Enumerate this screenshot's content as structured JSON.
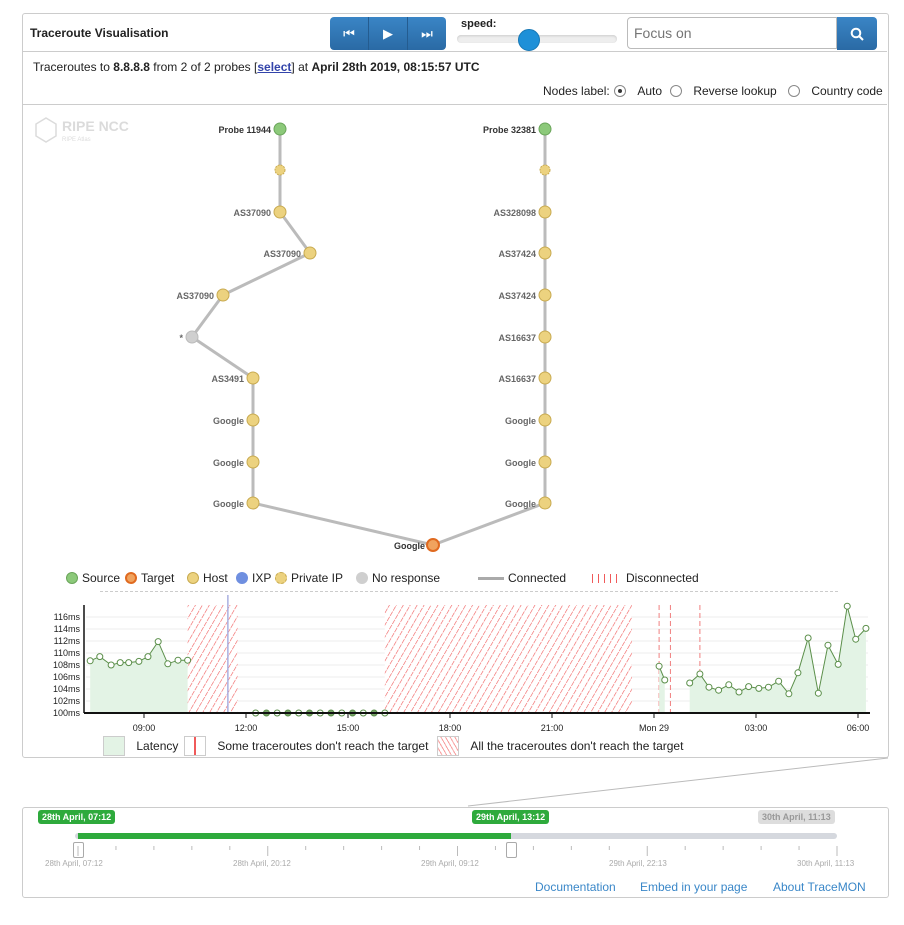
{
  "header": {
    "title": "Traceroute Visualisation",
    "controls": {
      "prev_icon": "skip-back-icon",
      "play_icon": "play-icon",
      "next_icon": "skip-forward-icon"
    },
    "speed_label": "speed:",
    "speed_value": 0.44,
    "search_placeholder": "Focus on",
    "search_icon": "search-icon"
  },
  "info": {
    "prefix": "Traceroutes to ",
    "target": "8.8.8.8",
    "mid": " from 2 of 2 probes ",
    "select": "select",
    "at": " at ",
    "datetime": "April 28th 2019, 08:15:57 UTC"
  },
  "nodes_label": {
    "label": "Nodes label:",
    "options": [
      {
        "label": "Auto",
        "selected": true
      },
      {
        "label": "Reverse lookup",
        "selected": false
      },
      {
        "label": "Country code",
        "selected": false
      }
    ]
  },
  "graph": {
    "colors": {
      "source": "#8cc97a",
      "target": "#f0a35e",
      "host": "#ecd27f",
      "ixp": "#6f8fe0",
      "private": "#ecd27f",
      "no_response": "#cfcfcf"
    },
    "paths": [
      {
        "nodes": [
          {
            "label": "Probe 11944",
            "type": "source"
          },
          {
            "label": "",
            "type": "private"
          },
          {
            "label": "AS37090",
            "type": "host"
          },
          {
            "label": "AS37090",
            "type": "host"
          },
          {
            "label": "AS37090",
            "type": "host"
          },
          {
            "label": "*",
            "type": "no_response"
          },
          {
            "label": "AS3491",
            "type": "host"
          },
          {
            "label": "Google",
            "type": "host"
          },
          {
            "label": "Google",
            "type": "host"
          },
          {
            "label": "Google",
            "type": "host"
          }
        ]
      },
      {
        "nodes": [
          {
            "label": "Probe 32381",
            "type": "source"
          },
          {
            "label": "",
            "type": "private"
          },
          {
            "label": "AS328098",
            "type": "host"
          },
          {
            "label": "AS37424",
            "type": "host"
          },
          {
            "label": "AS37424",
            "type": "host"
          },
          {
            "label": "AS16637",
            "type": "host"
          },
          {
            "label": "AS16637",
            "type": "host"
          },
          {
            "label": "Google",
            "type": "host"
          },
          {
            "label": "Google",
            "type": "host"
          },
          {
            "label": "Google",
            "type": "host"
          }
        ]
      }
    ],
    "target": {
      "label": "Google",
      "type": "target"
    },
    "watermark": {
      "name": "RIPE NCC",
      "sub": "RIPE Atlas"
    }
  },
  "legend": {
    "items": [
      {
        "label": "Source",
        "type": "source"
      },
      {
        "label": "Target",
        "type": "target"
      },
      {
        "label": "Host",
        "type": "host"
      },
      {
        "label": "IXP",
        "type": "ixp"
      },
      {
        "label": "Private IP",
        "type": "private"
      },
      {
        "label": "No response",
        "type": "no_response"
      },
      {
        "label": "Connected",
        "type": "line"
      },
      {
        "label": "Disconnected",
        "type": "dashed"
      }
    ]
  },
  "chart_data": {
    "type": "area",
    "y_ticks": [
      "100ms",
      "102ms",
      "104ms",
      "106ms",
      "108ms",
      "110ms",
      "112ms",
      "114ms",
      "116ms"
    ],
    "ylim": [
      100,
      118
    ],
    "x_ticks": [
      "09:00",
      "12:00",
      "15:00",
      "18:00",
      "21:00",
      "Mon 29",
      "03:00",
      "06:00"
    ],
    "segments": [
      [
        [
          "04-28 07:25",
          108.7
        ],
        [
          "04-28 07:42",
          109.4
        ],
        [
          "04-28 08:02",
          108
        ],
        [
          "04-28 08:18",
          108.4
        ],
        [
          "04-28 08:33",
          108.4
        ],
        [
          "04-28 08:51",
          108.6
        ],
        [
          "04-28 09:07",
          109.4
        ],
        [
          "04-28 09:25",
          111.9
        ],
        [
          "04-28 09:42",
          108.2
        ],
        [
          "04-28 10:00",
          108.8
        ],
        [
          "04-28 10:17",
          108.8
        ]
      ],
      [
        [
          "04-28 12:17",
          100
        ],
        [
          "04-28 12:36",
          100
        ],
        [
          "04-28 12:55",
          100
        ],
        [
          "04-28 13:14",
          100
        ],
        [
          "04-28 13:33",
          100
        ],
        [
          "04-28 13:52",
          100
        ],
        [
          "04-28 14:11",
          100
        ],
        [
          "04-28 14:30",
          100
        ],
        [
          "04-28 14:49",
          100
        ],
        [
          "04-28 15:08",
          100
        ],
        [
          "04-28 15:27",
          100
        ],
        [
          "04-28 15:46",
          100
        ],
        [
          "04-28 16:05",
          100
        ]
      ],
      [
        [
          "04-29 00:09",
          107.8
        ],
        [
          "04-29 00:19",
          105.5
        ]
      ],
      [
        [
          "04-29 01:03",
          105
        ],
        [
          "04-29 01:21",
          106.5
        ],
        [
          "04-29 01:37",
          104.3
        ],
        [
          "04-29 01:54",
          103.8
        ],
        [
          "04-29 02:12",
          104.7
        ],
        [
          "04-29 02:30",
          103.5
        ],
        [
          "04-29 02:47",
          104.4
        ],
        [
          "04-29 03:05",
          104.1
        ],
        [
          "04-29 03:22",
          104.3
        ],
        [
          "04-29 03:40",
          105.3
        ],
        [
          "04-29 03:58",
          103.2
        ],
        [
          "04-29 04:14",
          106.7
        ],
        [
          "04-29 04:32",
          112.5
        ],
        [
          "04-29 04:50",
          103.3
        ],
        [
          "04-29 05:07",
          111.3
        ],
        [
          "04-29 05:25",
          108.1
        ],
        [
          "04-29 05:41",
          117.8
        ],
        [
          "04-29 05:56",
          112.3
        ],
        [
          "04-29 06:14",
          114.1
        ]
      ]
    ],
    "all_fail_ranges": [
      [
        "04-28 10:17",
        "04-28 11:45"
      ],
      [
        "04-28 16:05",
        "04-28 23:21"
      ]
    ],
    "some_fail_marks": [
      "04-29 00:09",
      "04-29 00:29",
      "04-29 01:21"
    ],
    "cursor": "04-28 11:28",
    "legend": [
      "Latency",
      "Some traceroutes don't reach the target",
      "All the traceroutes don't reach the target"
    ],
    "colors": {
      "line": "#5b8f4a",
      "fill": "#e3f3e5",
      "hatch": "#f05a5a"
    }
  },
  "timeline": {
    "start_badge": "28th April, 07:12",
    "end_badge": "29th April, 13:12",
    "max_badge": "30th April, 11:13",
    "ticks": [
      "28th April, 07:12",
      "28th April, 20:12",
      "29th April, 09:12",
      "29th April, 22:13",
      "30th April, 11:13"
    ],
    "selected_fraction": 0.57
  },
  "footer": {
    "links": [
      "Documentation",
      "Embed in your page",
      "About TraceMON"
    ]
  }
}
